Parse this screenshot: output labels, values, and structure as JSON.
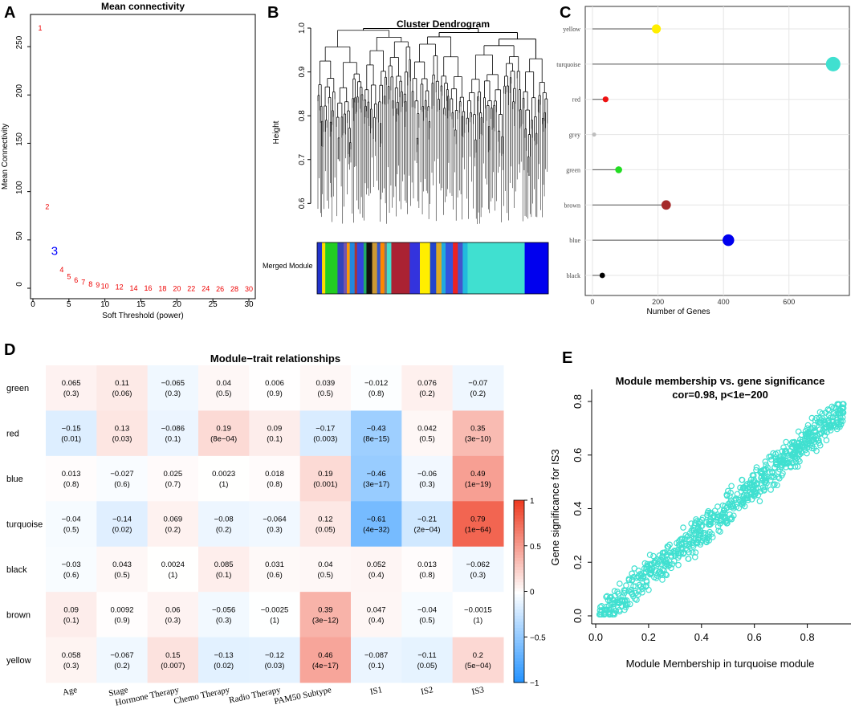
{
  "panels": {
    "a": "A",
    "b": "B",
    "c": "C",
    "d": "D",
    "e": "E"
  },
  "chart_data": [
    {
      "panel": "A",
      "type": "scatter",
      "title": "Mean connectivity",
      "xlabel": "Soft Threshold (power)",
      "ylabel": "Mean Connectivity",
      "xlim": [
        0,
        30
      ],
      "ylim": [
        0,
        270
      ],
      "xticks": [
        0,
        5,
        10,
        15,
        20,
        25,
        30
      ],
      "yticks": [
        0,
        50,
        100,
        150,
        200,
        250
      ],
      "highlight_power": 3,
      "points": [
        {
          "power": 1,
          "value": 270
        },
        {
          "power": 2,
          "value": 85
        },
        {
          "power": 3,
          "value": 38
        },
        {
          "power": 4,
          "value": 20
        },
        {
          "power": 5,
          "value": 13
        },
        {
          "power": 6,
          "value": 9
        },
        {
          "power": 7,
          "value": 7
        },
        {
          "power": 8,
          "value": 5
        },
        {
          "power": 9,
          "value": 4
        },
        {
          "power": 10,
          "value": 3
        },
        {
          "power": 12,
          "value": 2
        },
        {
          "power": 14,
          "value": 1
        },
        {
          "power": 16,
          "value": 1
        },
        {
          "power": 18,
          "value": 0.5
        },
        {
          "power": 20,
          "value": 0.5
        },
        {
          "power": 22,
          "value": 0.3
        },
        {
          "power": 24,
          "value": 0.3
        },
        {
          "power": 26,
          "value": 0.2
        },
        {
          "power": 28,
          "value": 0.2
        },
        {
          "power": 30,
          "value": 0.2
        }
      ]
    },
    {
      "panel": "B",
      "type": "dendrogram",
      "title": "Cluster Dendrogram",
      "ylabel": "Height",
      "ylim": [
        0.52,
        1.0
      ],
      "yticks": [
        0.6,
        0.7,
        0.8,
        0.9,
        1.0
      ],
      "color_bar_label": "Merged Module",
      "module_bar": [
        {
          "color": "#2233cc",
          "w": 1.2
        },
        {
          "color": "#ffdd00",
          "w": 0.8
        },
        {
          "color": "#22cc22",
          "w": 3
        },
        {
          "color": "#3344bb",
          "w": 1.5
        },
        {
          "color": "#7755aa",
          "w": 0.8
        },
        {
          "color": "#ff9900",
          "w": 0.7
        },
        {
          "color": "#2288dd",
          "w": 1.2
        },
        {
          "color": "#aa3333",
          "w": 0.6
        },
        {
          "color": "#3344dd",
          "w": 1.6
        },
        {
          "color": "#22aa66",
          "w": 0.7
        },
        {
          "color": "#111111",
          "w": 1.4
        },
        {
          "color": "#cc9933",
          "w": 1.2
        },
        {
          "color": "#3355cc",
          "w": 0.8
        },
        {
          "color": "#ff8800",
          "w": 1
        },
        {
          "color": "#777777",
          "w": 0.6
        },
        {
          "color": "#44ddcc",
          "w": 1.1
        },
        {
          "color": "#aa2233",
          "w": 4.5
        },
        {
          "color": "#3333dd",
          "w": 2.5
        },
        {
          "color": "#ffee00",
          "w": 2.5
        },
        {
          "color": "#2244cc",
          "w": 1.5
        },
        {
          "color": "#ddaa22",
          "w": 1.3
        },
        {
          "color": "#22aadd",
          "w": 1
        },
        {
          "color": "#3355dd",
          "w": 1.8
        },
        {
          "color": "#ee2222",
          "w": 1.2
        },
        {
          "color": "#4455cc",
          "w": 1.2
        },
        {
          "color": "#22bbdd",
          "w": 1.2
        },
        {
          "color": "#40e0d0",
          "w": 14
        },
        {
          "color": "#0000ee",
          "w": 5.8
        }
      ]
    },
    {
      "panel": "C",
      "type": "lollipop",
      "xlabel": "Number of Genes",
      "xlim": [
        0,
        760
      ],
      "xticks": [
        0,
        200,
        400,
        600
      ],
      "modules": [
        {
          "name": "yellow",
          "genes": 195,
          "color": "#ffee00"
        },
        {
          "name": "turquoise",
          "genes": 735,
          "color": "#40e0d0"
        },
        {
          "name": "red",
          "genes": 40,
          "color": "#ee1111"
        },
        {
          "name": "grey",
          "genes": 5,
          "color": "#bebebe"
        },
        {
          "name": "green",
          "genes": 80,
          "color": "#22dd22"
        },
        {
          "name": "brown",
          "genes": 225,
          "color": "#a52a2a"
        },
        {
          "name": "blue",
          "genes": 415,
          "color": "#0000ee"
        },
        {
          "name": "black",
          "genes": 30,
          "color": "#000000"
        }
      ]
    },
    {
      "panel": "D",
      "type": "heatmap",
      "title": "Module−trait relationships",
      "rows": [
        "green",
        "red",
        "blue",
        "turquoise",
        "black",
        "brown",
        "yellow"
      ],
      "cols": [
        "Age",
        "Stage",
        "Hormone Therapy",
        "Chemo Therapy",
        "Radio Therapy",
        "PAM50 Subtype",
        "IS1",
        "IS2",
        "IS3"
      ],
      "corr": [
        [
          0.065,
          0.11,
          -0.065,
          0.04,
          0.006,
          0.039,
          -0.012,
          0.076,
          -0.07
        ],
        [
          -0.15,
          0.13,
          -0.086,
          0.19,
          0.09,
          -0.17,
          -0.43,
          0.042,
          0.35
        ],
        [
          0.013,
          -0.027,
          0.025,
          0.0023,
          0.018,
          0.19,
          -0.46,
          -0.06,
          0.49
        ],
        [
          -0.04,
          -0.14,
          0.069,
          -0.08,
          -0.064,
          0.12,
          -0.61,
          -0.21,
          0.79
        ],
        [
          -0.03,
          0.043,
          0.0024,
          0.085,
          0.031,
          0.04,
          0.052,
          0.013,
          -0.062
        ],
        [
          0.09,
          0.0092,
          0.06,
          -0.056,
          -0.0025,
          0.39,
          0.047,
          -0.04,
          -0.0015
        ],
        [
          0.058,
          -0.067,
          0.15,
          -0.13,
          -0.12,
          0.46,
          -0.087,
          -0.11,
          0.2
        ]
      ],
      "corr_text": [
        [
          "0.065",
          "0.11",
          "−0.065",
          "0.04",
          "0.006",
          "0.039",
          "−0.012",
          "0.076",
          "−0.07"
        ],
        [
          "−0.15",
          "0.13",
          "−0.086",
          "0.19",
          "0.09",
          "−0.17",
          "−0.43",
          "0.042",
          "0.35"
        ],
        [
          "0.013",
          "−0.027",
          "0.025",
          "0.0023",
          "0.018",
          "0.19",
          "−0.46",
          "−0.06",
          "0.49"
        ],
        [
          "−0.04",
          "−0.14",
          "0.069",
          "−0.08",
          "−0.064",
          "0.12",
          "−0.61",
          "−0.21",
          "0.79"
        ],
        [
          "−0.03",
          "0.043",
          "0.0024",
          "0.085",
          "0.031",
          "0.04",
          "0.052",
          "0.013",
          "−0.062"
        ],
        [
          "0.09",
          "0.0092",
          "0.06",
          "−0.056",
          "−0.0025",
          "0.39",
          "0.047",
          "−0.04",
          "−0.0015"
        ],
        [
          "0.058",
          "−0.067",
          "0.15",
          "−0.13",
          "−0.12",
          "0.46",
          "−0.087",
          "−0.11",
          "0.2"
        ]
      ],
      "pvalues": [
        [
          "(0.3)",
          "(0.06)",
          "(0.3)",
          "(0.5)",
          "(0.9)",
          "(0.5)",
          "(0.8)",
          "(0.2)",
          "(0.2)"
        ],
        [
          "(0.01)",
          "(0.03)",
          "(0.1)",
          "(8e−04)",
          "(0.1)",
          "(0.003)",
          "(8e−15)",
          "(0.5)",
          "(3e−10)"
        ],
        [
          "(0.8)",
          "(0.6)",
          "(0.7)",
          "(1)",
          "(0.8)",
          "(0.001)",
          "(3e−17)",
          "(0.3)",
          "(1e−19)"
        ],
        [
          "(0.5)",
          "(0.02)",
          "(0.2)",
          "(0.2)",
          "(0.3)",
          "(0.05)",
          "(4e−32)",
          "(2e−04)",
          "(1e−64)"
        ],
        [
          "(0.6)",
          "(0.5)",
          "(1)",
          "(0.1)",
          "(0.6)",
          "(0.5)",
          "(0.4)",
          "(0.8)",
          "(0.3)"
        ],
        [
          "(0.1)",
          "(0.9)",
          "(0.3)",
          "(0.3)",
          "(1)",
          "(3e−12)",
          "(0.4)",
          "(0.5)",
          "(1)"
        ],
        [
          "(0.3)",
          "(0.2)",
          "(0.007)",
          "(0.02)",
          "(0.03)",
          "(4e−17)",
          "(0.1)",
          "(0.05)",
          "(5e−04)"
        ]
      ],
      "colorbar_ticks": [
        "1",
        "0.5",
        "0",
        "−0.5",
        "−1"
      ]
    },
    {
      "panel": "E",
      "type": "scatter",
      "title": "Module membership vs. gene significance",
      "subtitle": "cor=0.98, p<1e−200",
      "xlabel": "Module Membership in turquoise module",
      "ylabel": "Gene significance for IS3",
      "xlim": [
        0,
        0.95
      ],
      "ylim": [
        0,
        0.8
      ],
      "xticks": [
        "0.0",
        "0.2",
        "0.4",
        "0.6",
        "0.8"
      ],
      "yticks": [
        "0.0",
        "0.2",
        "0.4",
        "0.6",
        "0.8"
      ],
      "n_points": 735,
      "slope": 0.83,
      "intercept": -0.01,
      "color": "#40e0d0"
    }
  ]
}
